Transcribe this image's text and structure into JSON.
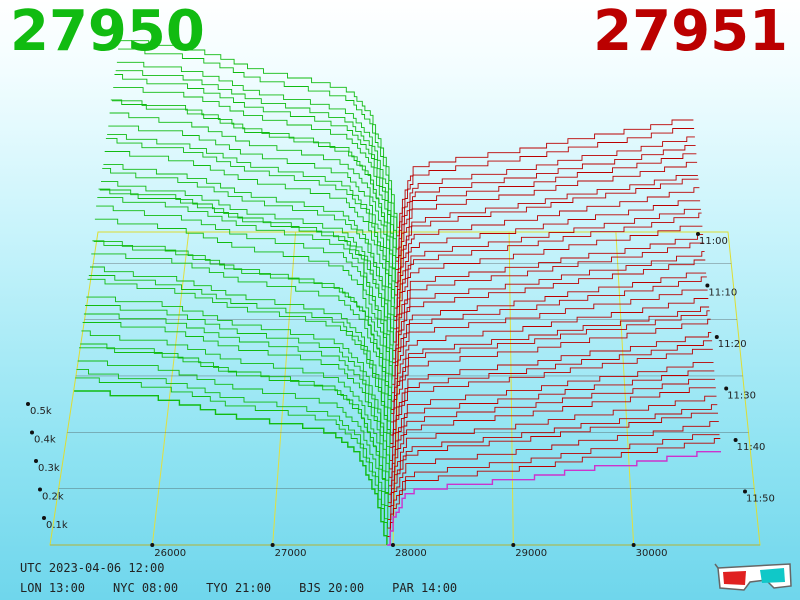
{
  "header": {
    "bid_price": "27950",
    "ask_price": "27951",
    "bid_color": "#11bb11",
    "ask_color": "#bb0000"
  },
  "footer": {
    "utc": "UTC 2023-04-06 12:00",
    "zones": [
      "LON 13:00",
      "NYC 08:00",
      "TYO 21:00",
      "BJS 20:00",
      "PAR 14:00"
    ]
  },
  "icons": {
    "corner": "3d-glasses-icon"
  },
  "chart_data": {
    "type": "area",
    "mode": "3d-order-book-depth",
    "x": {
      "ticks": [
        26000,
        27000,
        28000,
        29000,
        30000
      ],
      "tick_labels": [
        "26000",
        "27000",
        "28000",
        "29000",
        "30000"
      ],
      "range": [
        25150,
        31050
      ]
    },
    "z": {
      "ticks": [
        0.1,
        0.2,
        0.3,
        0.4,
        0.5
      ],
      "tick_labels": [
        "0.1k",
        "0.2k",
        "0.3k",
        "0.4k",
        "0.5k"
      ],
      "unit": "k"
    },
    "time": {
      "ticks": [
        "11:00",
        "11:10",
        "11:20",
        "11:30",
        "11:40",
        "11:50"
      ]
    },
    "mid_price": 27950.5,
    "bid_color": "#11bb11",
    "ask_color": "#bb0000",
    "bid_depth_profile": [
      [
        25400,
        0.61
      ],
      [
        25700,
        0.59
      ],
      [
        26000,
        0.58
      ],
      [
        26300,
        0.55
      ],
      [
        26600,
        0.51
      ],
      [
        26900,
        0.49
      ],
      [
        27200,
        0.47
      ],
      [
        27500,
        0.44
      ],
      [
        27700,
        0.36
      ],
      [
        27850,
        0.2
      ],
      [
        27950,
        0.0
      ]
    ],
    "ask_depth_profile": [
      [
        27951,
        0.0
      ],
      [
        28000,
        0.1
      ],
      [
        28100,
        0.2
      ],
      [
        28400,
        0.22
      ],
      [
        28800,
        0.24
      ],
      [
        29200,
        0.26
      ],
      [
        29600,
        0.29
      ],
      [
        30000,
        0.31
      ],
      [
        30300,
        0.33
      ],
      [
        30700,
        0.36
      ]
    ]
  }
}
